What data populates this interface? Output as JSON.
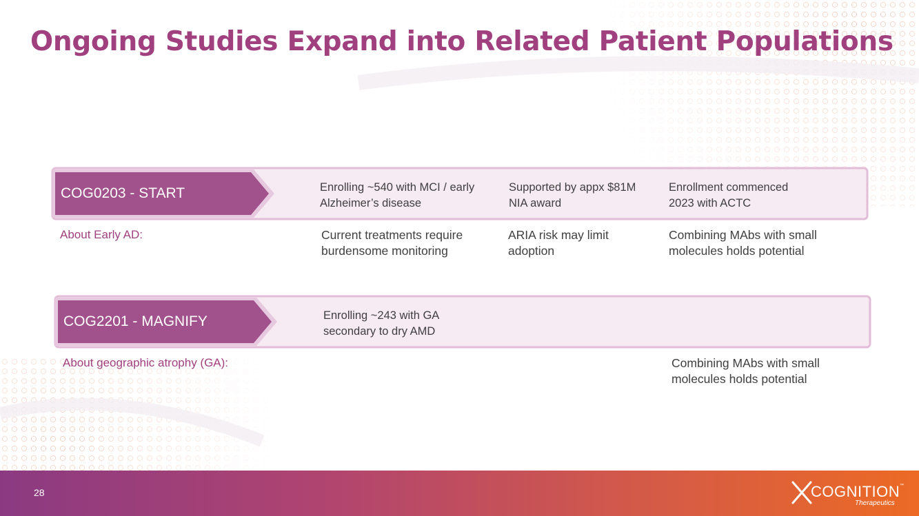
{
  "title": "Ongoing Studies Expand into Related Patient Populations",
  "colors": {
    "accent": "#a1407f",
    "banner_light": "#f6eaf3",
    "banner_dark": "#a1518b",
    "text": "#404040",
    "footer_start": "#8b3a82",
    "footer_end": "#ec6a24"
  },
  "studies": [
    {
      "name": "COG0203 - START",
      "details": [
        "Enrolling ~540 with MCI / early\nAlzheimer’s disease",
        "Supported by appx $81M\nNIA award",
        "Enrollment commenced\n2023 with ACTC"
      ],
      "about_label": "About Early AD:",
      "facts": [
        "Current treatments require\nburdensome monitoring",
        "ARIA risk may limit\nadoption",
        "Combining MAbs with small\nmolecules holds potential"
      ]
    },
    {
      "name": "COG2201 - MAGNIFY",
      "details": [
        "Enrolling ~243 with GA\nsecondary to dry AMD"
      ],
      "about_label": "About geographic atrophy (GA):",
      "facts": [
        "Combining MAbs with small\nmolecules holds potential"
      ]
    }
  ],
  "footer": {
    "page_number": "28",
    "logo": {
      "icon": "cognition-x-mark-icon",
      "word": "COGNITION",
      "tm": "™",
      "subtitle": "Therapeutics"
    }
  }
}
